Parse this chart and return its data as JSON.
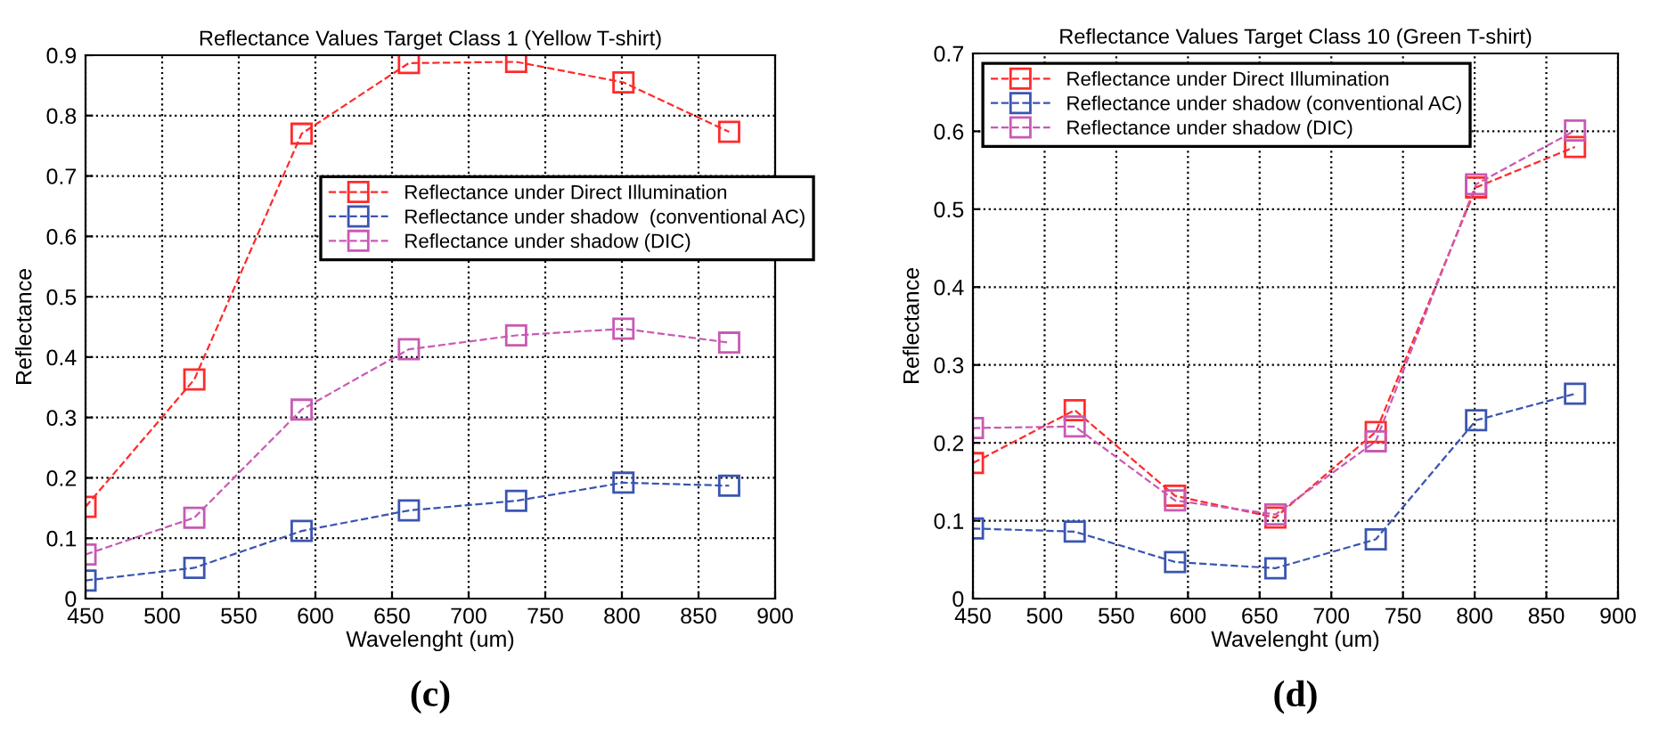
{
  "chart_data": [
    {
      "type": "line",
      "title": "Reflectance Values Target Class 1 (Yellow T-shirt)",
      "xlabel": "Wavelenght (um)",
      "ylabel": "Reflectance",
      "annotations": [
        "(c)"
      ],
      "x": [
        450,
        521,
        591,
        661,
        731,
        801,
        870
      ],
      "series": [
        {
          "name": "Reflectance under Direct Illumination",
          "color": "#ff2a2a",
          "values": [
            0.152,
            0.363,
            0.77,
            0.887,
            0.889,
            0.855,
            0.773
          ]
        },
        {
          "name": "Reflectance under shadow  (conventional AC)",
          "color": "#3a55b0",
          "values": [
            0.03,
            0.051,
            0.112,
            0.146,
            0.162,
            0.192,
            0.187
          ]
        },
        {
          "name": "Reflectance under shadow (DIC)",
          "color": "#c85ab4",
          "values": [
            0.073,
            0.134,
            0.313,
            0.413,
            0.436,
            0.447,
            0.424
          ]
        }
      ],
      "xlim": [
        450,
        900
      ],
      "xticks": [
        450,
        500,
        550,
        600,
        650,
        700,
        750,
        800,
        850,
        900
      ],
      "ylim": [
        0,
        0.9
      ],
      "yticks": [
        0,
        0.1,
        0.2,
        0.3,
        0.4,
        0.5,
        0.6,
        0.7,
        0.8,
        0.9
      ],
      "grid": true,
      "legend": "center right",
      "marker": "square",
      "line_style": "dashed"
    },
    {
      "type": "line",
      "title": "Reflectance Values Target Class 10 (Green T-shirt)",
      "xlabel": "Wavelenght (um)",
      "ylabel": "Reflectance",
      "annotations": [
        "(d)"
      ],
      "x": [
        450,
        521,
        591,
        661,
        731,
        801,
        870
      ],
      "series": [
        {
          "name": "Reflectance under Direct Illumination",
          "color": "#ff2a2a",
          "values": [
            0.174,
            0.242,
            0.132,
            0.104,
            0.214,
            0.528,
            0.58
          ]
        },
        {
          "name": "Reflectance under shadow (conventional AC)",
          "color": "#3a55b0",
          "values": [
            0.09,
            0.086,
            0.047,
            0.039,
            0.076,
            0.229,
            0.263
          ]
        },
        {
          "name": "Reflectance under shadow (DIC)",
          "color": "#c85ab4",
          "values": [
            0.219,
            0.221,
            0.126,
            0.108,
            0.202,
            0.532,
            0.601
          ]
        }
      ],
      "xlim": [
        450,
        900
      ],
      "xticks": [
        450,
        500,
        550,
        600,
        650,
        700,
        750,
        800,
        850,
        900
      ],
      "ylim": [
        0,
        0.7
      ],
      "yticks": [
        0,
        0.1,
        0.2,
        0.3,
        0.4,
        0.5,
        0.6,
        0.7
      ],
      "grid": true,
      "legend": "upper left",
      "marker": "square",
      "line_style": "dashed"
    }
  ]
}
